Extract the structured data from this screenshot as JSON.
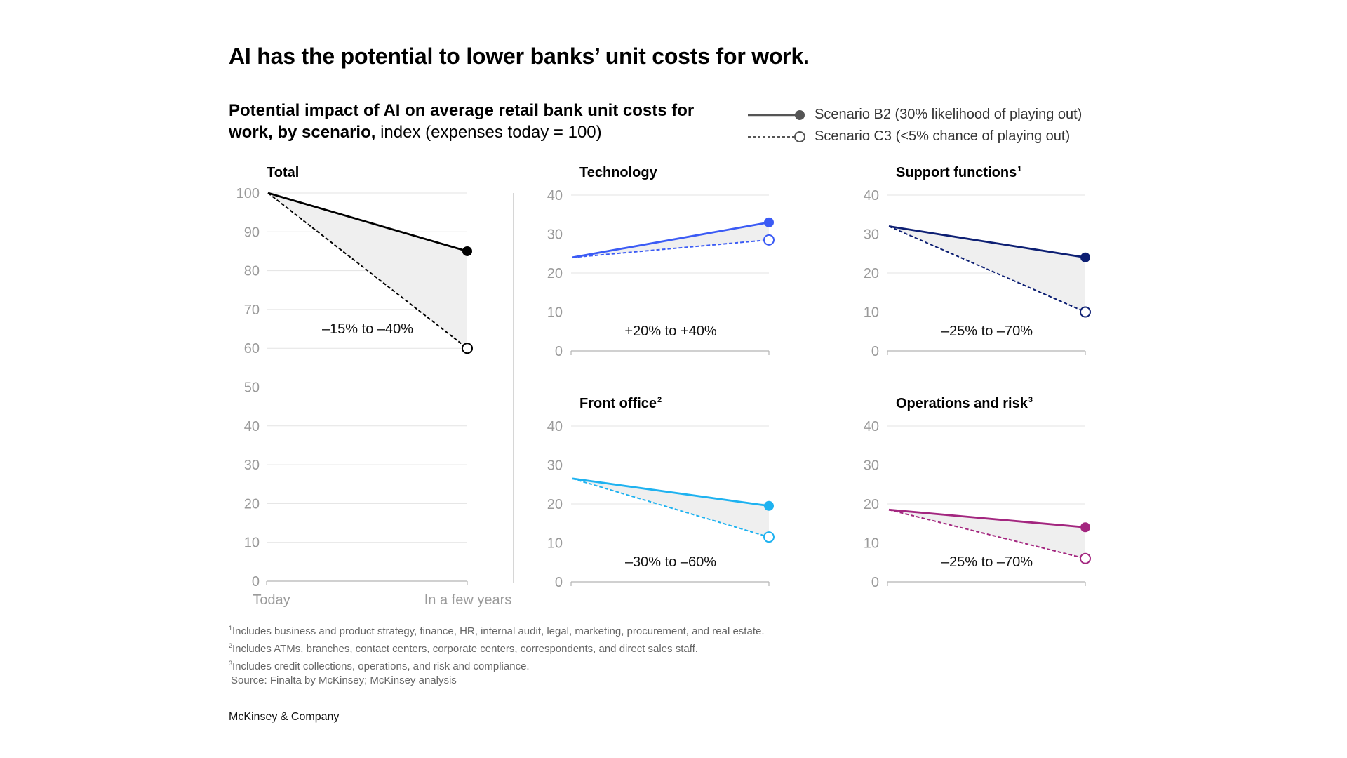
{
  "title": "AI has the potential to lower banks’ unit costs for work.",
  "subtitle_bold": "Potential impact of AI on average retail bank unit costs for work, by scenario,",
  "subtitle_normal": " index (expenses today = 100)",
  "legend": {
    "b2": "Scenario B2 (30% likelihood of playing out)",
    "c3": "Scenario C3 (<5% chance of playing out)"
  },
  "chart_data": [
    {
      "type": "line",
      "id": "total",
      "title": "Total",
      "sup": "",
      "color": "#000000",
      "x": [
        "Today",
        "In a few years"
      ],
      "series": [
        {
          "name": "Scenario B2 (30% likelihood of playing out)",
          "values": [
            100,
            85
          ]
        },
        {
          "name": "Scenario C3 (<5% chance of playing out)",
          "values": [
            100,
            60
          ]
        }
      ],
      "ylim": [
        0,
        100
      ],
      "yticks": [
        0,
        10,
        20,
        30,
        40,
        50,
        60,
        70,
        80,
        90,
        100
      ],
      "annotation": "–15% to –40%"
    },
    {
      "type": "line",
      "id": "technology",
      "title": "Technology",
      "sup": "",
      "color": "#3b5bf5",
      "series": [
        {
          "name": "Scenario B2 (30% likelihood of playing out)",
          "values": [
            24,
            33
          ]
        },
        {
          "name": "Scenario C3 (<5% chance of playing out)",
          "values": [
            24,
            28.5
          ]
        }
      ],
      "ylim": [
        0,
        40
      ],
      "yticks": [
        0,
        10,
        20,
        30,
        40
      ],
      "annotation": "+20% to +40%"
    },
    {
      "type": "line",
      "id": "support",
      "title": "Support functions",
      "sup": "1",
      "color": "#0d1f73",
      "series": [
        {
          "name": "Scenario B2 (30% likelihood of playing out)",
          "values": [
            32,
            24
          ]
        },
        {
          "name": "Scenario C3 (<5% chance of playing out)",
          "values": [
            32,
            10
          ]
        }
      ],
      "ylim": [
        0,
        40
      ],
      "yticks": [
        0,
        10,
        20,
        30,
        40
      ],
      "annotation": "–25% to –70%"
    },
    {
      "type": "line",
      "id": "front",
      "title": "Front office",
      "sup": "2",
      "color": "#1eb2f0",
      "series": [
        {
          "name": "Scenario B2 (30% likelihood of playing out)",
          "values": [
            26.5,
            19.5
          ]
        },
        {
          "name": "Scenario C3 (<5% chance of playing out)",
          "values": [
            26.5,
            11.5
          ]
        }
      ],
      "ylim": [
        0,
        40
      ],
      "yticks": [
        0,
        10,
        20,
        30,
        40
      ],
      "annotation": "–30% to –60%"
    },
    {
      "type": "line",
      "id": "operations",
      "title": "Operations and risk",
      "sup": "3",
      "color": "#a3267f",
      "series": [
        {
          "name": "Scenario B2 (30% likelihood of playing out)",
          "values": [
            18.5,
            14
          ]
        },
        {
          "name": "Scenario C3 (<5% chance of playing out)",
          "values": [
            18.5,
            6
          ]
        }
      ],
      "ylim": [
        0,
        40
      ],
      "yticks": [
        0,
        10,
        20,
        30,
        40
      ],
      "annotation": "–25% to –70%"
    }
  ],
  "footnotes": [
    {
      "sup": "1",
      "text": "Includes business and product strategy, finance, HR, internal audit, legal, marketing, procurement, and real estate."
    },
    {
      "sup": "2",
      "text": "Includes ATMs, branches, contact centers, corporate centers, correspondents, and direct sales staff."
    },
    {
      "sup": "3",
      "text": "Includes credit collections, operations, and risk and compliance."
    }
  ],
  "source": "Source: Finalta by McKinsey; McKinsey analysis",
  "brand": "McKinsey & Company"
}
